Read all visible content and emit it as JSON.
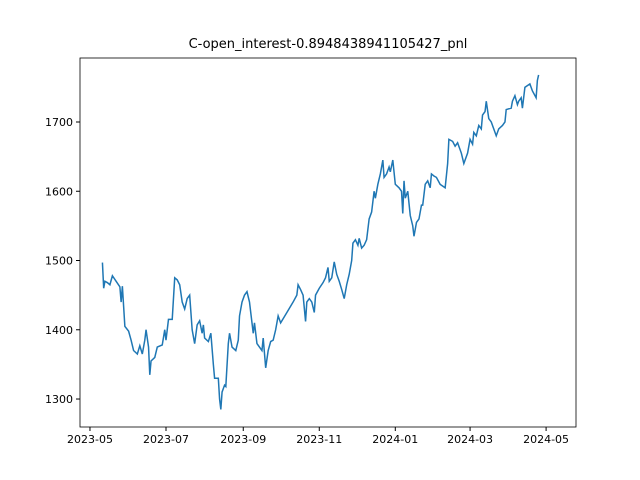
{
  "chart_data": {
    "type": "line",
    "title": "C-open_interest-0.8948438941105427_pnl",
    "x": [
      10,
      11,
      12,
      14,
      16,
      18,
      21,
      24,
      25,
      26,
      28,
      31,
      33,
      35,
      38,
      40,
      42,
      44,
      45,
      47,
      48,
      49,
      52,
      54,
      58,
      60,
      61,
      63,
      66,
      68,
      70,
      72,
      74,
      76,
      78,
      80,
      82,
      84,
      86,
      88,
      90,
      91,
      92,
      95,
      97,
      99,
      100,
      103,
      104,
      105,
      106,
      108,
      109,
      111,
      112,
      114,
      117,
      119,
      120,
      122,
      124,
      126,
      128,
      130,
      131,
      132,
      134,
      136,
      138,
      139,
      141,
      143,
      145,
      147,
      149,
      151,
      153,
      158,
      163,
      166,
      167,
      169,
      171,
      173,
      174,
      176,
      178,
      180,
      181,
      184,
      187,
      189,
      191,
      192,
      194,
      196,
      198,
      200,
      202,
      204,
      206,
      208,
      210,
      211,
      213,
      215,
      216,
      218,
      220,
      222,
      224,
      226,
      228,
      229,
      231,
      233,
      235,
      236,
      238,
      240,
      241,
      243,
      245,
      248,
      250,
      251,
      252,
      253,
      255,
      257,
      259,
      260,
      262,
      264,
      266,
      267,
      269,
      271,
      273,
      274,
      276,
      278,
      281,
      285,
      287,
      288,
      291,
      293,
      295,
      296,
      298,
      300,
      303,
      305,
      307,
      308,
      310,
      312,
      314,
      315,
      317,
      318,
      320,
      322,
      324,
      326,
      328,
      331,
      333,
      334,
      338,
      339,
      341,
      343,
      344,
      346,
      347,
      349,
      353,
      355,
      358,
      359,
      360
    ],
    "series": [
      {
        "color": "#1f77b4",
        "values": [
          1497,
          1460,
          1470,
          1468,
          1465,
          1478,
          1470,
          1462,
          1440,
          1463,
          1405,
          1398,
          1385,
          1370,
          1365,
          1377,
          1365,
          1385,
          1400,
          1375,
          1335,
          1355,
          1360,
          1375,
          1378,
          1400,
          1385,
          1415,
          1415,
          1475,
          1472,
          1465,
          1440,
          1430,
          1445,
          1450,
          1400,
          1380,
          1407,
          1413,
          1395,
          1407,
          1388,
          1383,
          1395,
          1350,
          1330,
          1330,
          1300,
          1285,
          1310,
          1320,
          1318,
          1380,
          1395,
          1375,
          1370,
          1385,
          1420,
          1440,
          1450,
          1455,
          1440,
          1410,
          1395,
          1410,
          1380,
          1375,
          1370,
          1388,
          1345,
          1370,
          1383,
          1385,
          1400,
          1420,
          1410,
          1425,
          1440,
          1450,
          1465,
          1458,
          1450,
          1412,
          1440,
          1445,
          1440,
          1425,
          1450,
          1460,
          1468,
          1475,
          1490,
          1470,
          1475,
          1498,
          1480,
          1470,
          1458,
          1445,
          1465,
          1480,
          1500,
          1525,
          1530,
          1522,
          1532,
          1518,
          1522,
          1530,
          1560,
          1570,
          1600,
          1590,
          1610,
          1625,
          1645,
          1620,
          1625,
          1635,
          1628,
          1645,
          1610,
          1605,
          1600,
          1568,
          1615,
          1590,
          1600,
          1565,
          1550,
          1535,
          1555,
          1560,
          1580,
          1580,
          1610,
          1615,
          1605,
          1625,
          1622,
          1620,
          1610,
          1605,
          1640,
          1675,
          1672,
          1665,
          1670,
          1665,
          1655,
          1640,
          1655,
          1675,
          1668,
          1685,
          1680,
          1695,
          1690,
          1710,
          1715,
          1730,
          1705,
          1700,
          1690,
          1680,
          1690,
          1695,
          1700,
          1718,
          1720,
          1730,
          1738,
          1725,
          1730,
          1735,
          1720,
          1750,
          1755,
          1745,
          1735,
          1760,
          1768
        ]
      }
    ],
    "xlim": [
      -8,
      390
    ],
    "ylim": [
      1259.6,
      1792.4
    ],
    "xticks": [
      {
        "value": 0,
        "label": "2023-05"
      },
      {
        "value": 61,
        "label": "2023-07"
      },
      {
        "value": 123,
        "label": "2023-09"
      },
      {
        "value": 184,
        "label": "2023-11"
      },
      {
        "value": 245,
        "label": "2024-01"
      },
      {
        "value": 305,
        "label": "2024-03"
      },
      {
        "value": 366,
        "label": "2024-05"
      }
    ],
    "yticks": [
      1300,
      1400,
      1500,
      1600,
      1700
    ]
  }
}
